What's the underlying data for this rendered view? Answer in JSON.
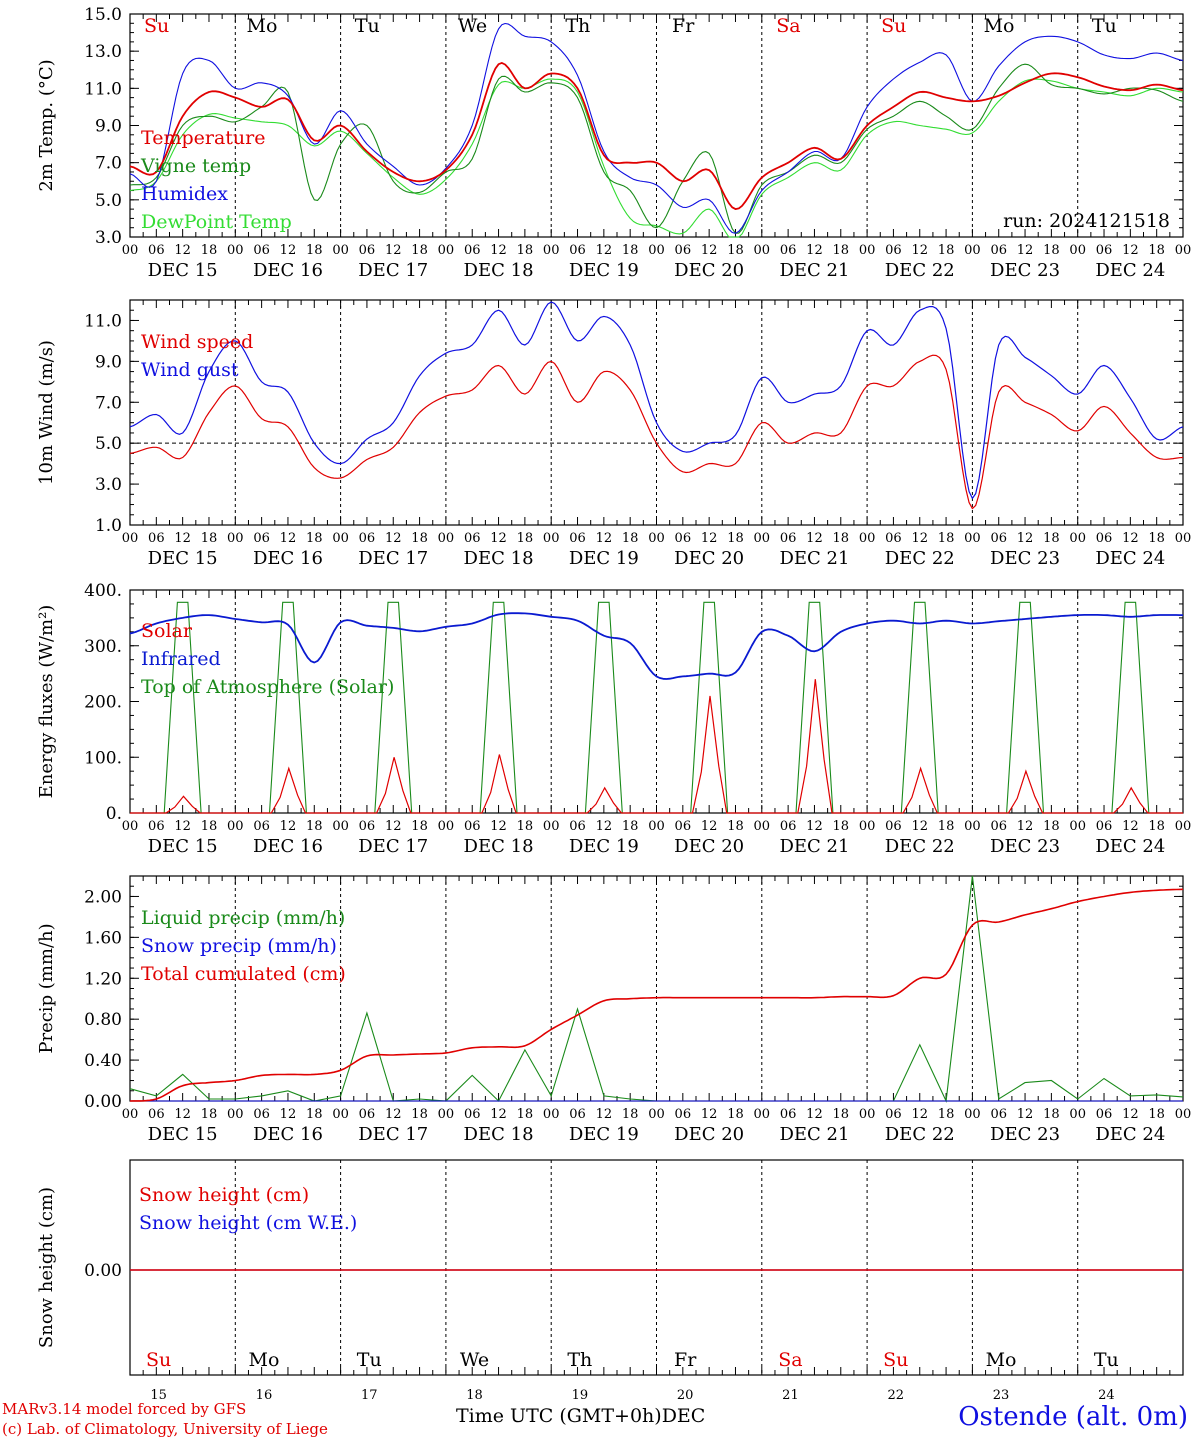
{
  "colors": {
    "red": "#e00000",
    "green": "#1a8a1a",
    "light_green": "#33dd33",
    "blue": "#1010e0",
    "dark_blue": "#0a1ad0",
    "axis": "#000000"
  },
  "days": {
    "weekday": [
      "Su",
      "Mo",
      "Tu",
      "We",
      "Th",
      "Fr",
      "Sa",
      "Su",
      "Mo",
      "Tu"
    ],
    "weekday_red": [
      true,
      false,
      false,
      false,
      false,
      false,
      true,
      true,
      false,
      false
    ],
    "date_label": [
      "DEC 15",
      "DEC 16",
      "DEC 17",
      "DEC 18",
      "DEC 19",
      "DEC 20",
      "DEC 21",
      "DEC 22",
      "DEC 23",
      "DEC 24"
    ],
    "day_number": [
      "15",
      "16",
      "17",
      "18",
      "19",
      "20",
      "21",
      "22",
      "23",
      "24"
    ],
    "hour_ticks": [
      "00",
      "06",
      "12",
      "18"
    ],
    "hour_end": "00"
  },
  "footer": {
    "credit_line1": "MARv3.14 model forced by GFS",
    "credit_line2": "(c) Lab. of Climatology, University of Liege",
    "x_axis_title": "Time UTC (GMT+0h)",
    "month": "DEC",
    "station": "Ostende (alt. 0m)"
  },
  "chart_data": [
    {
      "type": "line",
      "ylabel": "2m Temp. (°C)",
      "ylim": [
        3.0,
        15.0
      ],
      "yticks": [
        "3.0",
        "5.0",
        "7.0",
        "9.0",
        "11.0",
        "13.0",
        "15.0"
      ],
      "yticks_values": [
        3,
        5,
        7,
        9,
        11,
        13,
        15
      ],
      "run_label": "run: 2024121518",
      "x_hours_since_dec15_00": [
        0,
        6,
        12,
        18,
        24,
        30,
        36,
        42,
        48,
        54,
        60,
        66,
        72,
        78,
        84,
        90,
        96,
        102,
        108,
        114,
        120,
        126,
        132,
        138,
        144,
        150,
        156,
        162,
        168,
        174,
        180,
        186,
        192,
        198,
        204,
        210,
        216,
        222,
        228,
        234,
        240
      ],
      "series": [
        {
          "name": "Temperature",
          "color": "red",
          "values": [
            6.8,
            6.5,
            9.5,
            10.8,
            10.5,
            10.0,
            10.4,
            8.2,
            9.0,
            7.6,
            6.5,
            6.0,
            6.6,
            8.5,
            12.3,
            11.0,
            11.8,
            11.0,
            7.4,
            7.0,
            7.0,
            6.0,
            6.6,
            4.5,
            6.2,
            7.0,
            7.8,
            7.2,
            9.0,
            10.0,
            10.8,
            10.5,
            10.3,
            10.6,
            11.3,
            11.8,
            11.6,
            11.1,
            10.9,
            11.2,
            10.9
          ]
        },
        {
          "name": "Vigne temp",
          "color": "green",
          "values": [
            5.8,
            6.2,
            9.0,
            9.5,
            9.2,
            10.0,
            10.8,
            5.0,
            8.0,
            9.0,
            6.0,
            5.4,
            6.5,
            7.2,
            11.5,
            10.8,
            11.3,
            10.5,
            6.5,
            5.5,
            3.5,
            6.0,
            7.5,
            3.2,
            5.8,
            6.5,
            7.4,
            7.0,
            8.8,
            9.5,
            10.3,
            9.5,
            8.8,
            11.0,
            12.3,
            11.2,
            11.0,
            10.7,
            11.0,
            10.9,
            10.3
          ]
        },
        {
          "name": "Humidex",
          "color": "blue",
          "values": [
            6.4,
            6.0,
            11.8,
            12.5,
            11.0,
            11.3,
            10.6,
            8.0,
            9.8,
            8.0,
            6.8,
            5.8,
            6.7,
            9.0,
            14.2,
            13.8,
            13.5,
            11.7,
            7.6,
            6.2,
            5.8,
            4.6,
            5.0,
            3.2,
            5.5,
            6.5,
            7.6,
            7.2,
            10.0,
            11.5,
            12.4,
            12.8,
            10.3,
            12.2,
            13.5,
            13.8,
            13.5,
            12.8,
            12.6,
            12.9,
            12.5
          ]
        },
        {
          "name": "DewPoint Temp",
          "color": "light_green",
          "values": [
            5.5,
            6.0,
            8.5,
            9.6,
            9.4,
            9.2,
            9.0,
            7.9,
            8.7,
            7.5,
            6.2,
            5.3,
            6.1,
            8.0,
            11.2,
            11.0,
            11.5,
            10.8,
            6.8,
            4.0,
            3.6,
            3.2,
            4.5,
            2.8,
            5.3,
            6.2,
            7.0,
            6.6,
            8.5,
            9.2,
            9.0,
            8.8,
            8.6,
            10.3,
            11.4,
            11.4,
            11.0,
            10.8,
            10.6,
            11.0,
            10.8
          ]
        }
      ]
    },
    {
      "type": "line",
      "ylabel": "10m Wind (m/s)",
      "ylim": [
        1.0,
        12.0
      ],
      "yticks": [
        "1.0",
        "3.0",
        "5.0",
        "7.0",
        "9.0",
        "11.0"
      ],
      "yticks_values": [
        1,
        3,
        5,
        7,
        9,
        11
      ],
      "reference_line": 5.0,
      "x_hours_since_dec15_00": [
        0,
        6,
        12,
        18,
        24,
        30,
        36,
        42,
        48,
        54,
        60,
        66,
        72,
        78,
        84,
        90,
        96,
        102,
        108,
        114,
        120,
        126,
        132,
        138,
        144,
        150,
        156,
        162,
        168,
        174,
        180,
        186,
        192,
        198,
        204,
        210,
        216,
        222,
        228,
        234,
        240
      ],
      "series": [
        {
          "name": "Wind speed",
          "color": "red",
          "values": [
            4.5,
            4.8,
            4.3,
            6.5,
            7.8,
            6.2,
            5.8,
            3.8,
            3.3,
            4.2,
            4.8,
            6.5,
            7.3,
            7.6,
            8.8,
            7.4,
            9.0,
            7.0,
            8.5,
            7.6,
            5.0,
            3.6,
            4.0,
            4.0,
            6.0,
            5.0,
            5.5,
            5.5,
            7.8,
            7.8,
            9.0,
            8.6,
            1.8,
            7.5,
            7.0,
            6.4,
            5.6,
            6.8,
            5.5,
            4.3,
            4.3
          ]
        },
        {
          "name": "Wind gust",
          "color": "blue",
          "values": [
            5.8,
            6.4,
            5.5,
            8.5,
            10.0,
            8.0,
            7.5,
            5.0,
            4.0,
            5.2,
            6.0,
            8.3,
            9.4,
            9.8,
            11.5,
            9.8,
            11.9,
            10.0,
            11.2,
            9.8,
            6.0,
            4.6,
            5.0,
            5.4,
            8.2,
            7.0,
            7.4,
            7.8,
            10.5,
            9.8,
            11.5,
            10.6,
            2.3,
            9.8,
            9.2,
            8.3,
            7.4,
            8.8,
            7.2,
            5.2,
            5.8
          ]
        }
      ]
    },
    {
      "type": "line",
      "ylabel": "Energy fluxes (W/m²)",
      "ylim": [
        0,
        400
      ],
      "yticks": [
        "0.",
        "100.",
        "200.",
        "300.",
        "400."
      ],
      "yticks_values": [
        0,
        100,
        200,
        300,
        400
      ],
      "solar_peaks_by_day": [
        30,
        80,
        100,
        105,
        45,
        210,
        240,
        80,
        75,
        45
      ],
      "toa_peak": 378,
      "x_hours_since_dec15_00": [
        0,
        6,
        12,
        18,
        24,
        30,
        36,
        42,
        48,
        54,
        60,
        66,
        72,
        78,
        84,
        90,
        96,
        102,
        108,
        114,
        120,
        126,
        132,
        138,
        144,
        150,
        156,
        162,
        168,
        174,
        180,
        186,
        192,
        198,
        204,
        210,
        216,
        222,
        228,
        234,
        240
      ],
      "series": [
        {
          "name": "Solar",
          "color": "red"
        },
        {
          "name": "Infrared",
          "color": "dark_blue",
          "values": [
            322,
            340,
            350,
            355,
            348,
            342,
            338,
            270,
            342,
            336,
            332,
            326,
            334,
            340,
            356,
            358,
            352,
            345,
            318,
            305,
            245,
            245,
            250,
            252,
            325,
            318,
            290,
            325,
            340,
            345,
            340,
            345,
            340,
            344,
            348,
            352,
            355,
            355,
            352,
            355,
            355
          ]
        },
        {
          "name": "Top of Atmosphere (Solar)",
          "color": "green"
        }
      ]
    },
    {
      "type": "line",
      "ylabel": "Precip (mm/h)",
      "ylim": [
        0.0,
        2.2
      ],
      "yticks": [
        "0.00",
        "0.40",
        "0.80",
        "1.20",
        "1.60",
        "2.00"
      ],
      "yticks_values": [
        0,
        0.4,
        0.8,
        1.2,
        1.6,
        2.0
      ],
      "x_hours_since_dec15_00": [
        0,
        6,
        12,
        18,
        24,
        30,
        36,
        42,
        48,
        54,
        60,
        66,
        72,
        78,
        84,
        90,
        96,
        102,
        108,
        114,
        120,
        126,
        132,
        138,
        144,
        150,
        156,
        162,
        168,
        174,
        180,
        186,
        192,
        198,
        204,
        210,
        216,
        222,
        228,
        234,
        240
      ],
      "series": [
        {
          "name": "Liquid precip (mm/h)",
          "color": "green",
          "values": [
            0.12,
            0.05,
            0.26,
            0.02,
            0.02,
            0.05,
            0.1,
            0.0,
            0.05,
            0.86,
            0.0,
            0.02,
            0.0,
            0.25,
            0.0,
            0.5,
            0.05,
            0.9,
            0.05,
            0.02,
            0.0,
            0.0,
            0.0,
            0.0,
            0.0,
            0.0,
            0.0,
            0.0,
            0.0,
            0.0,
            0.55,
            0.0,
            2.2,
            0.02,
            0.18,
            0.2,
            0.02,
            0.22,
            0.05,
            0.06,
            0.04
          ]
        },
        {
          "name": "Snow precip (mm/h)",
          "color": "blue",
          "values": [
            0,
            0,
            0,
            0,
            0,
            0,
            0,
            0,
            0,
            0,
            0,
            0,
            0,
            0,
            0,
            0,
            0,
            0,
            0,
            0,
            0,
            0,
            0,
            0,
            0,
            0,
            0,
            0,
            0,
            0,
            0,
            0,
            0,
            0,
            0,
            0,
            0,
            0,
            0,
            0,
            0
          ]
        },
        {
          "name": "Total cumulated (cm)",
          "color": "red",
          "values": [
            0.0,
            0.02,
            0.15,
            0.18,
            0.2,
            0.25,
            0.26,
            0.26,
            0.3,
            0.44,
            0.45,
            0.46,
            0.47,
            0.52,
            0.53,
            0.54,
            0.7,
            0.84,
            0.98,
            1.0,
            1.01,
            1.01,
            1.01,
            1.01,
            1.01,
            1.01,
            1.01,
            1.02,
            1.02,
            1.03,
            1.2,
            1.24,
            1.72,
            1.75,
            1.82,
            1.88,
            1.95,
            2.0,
            2.04,
            2.06,
            2.07
          ]
        }
      ]
    },
    {
      "type": "line",
      "ylabel": "Snow height (cm)",
      "yticks": [
        "0.00"
      ],
      "yticks_values": [
        0
      ],
      "series": [
        {
          "name": "Snow height (cm)",
          "color": "red",
          "values": [
            0,
            0
          ]
        },
        {
          "name": "Snow height (cm W.E.)",
          "color": "blue",
          "values": [
            0,
            0
          ]
        }
      ]
    }
  ]
}
